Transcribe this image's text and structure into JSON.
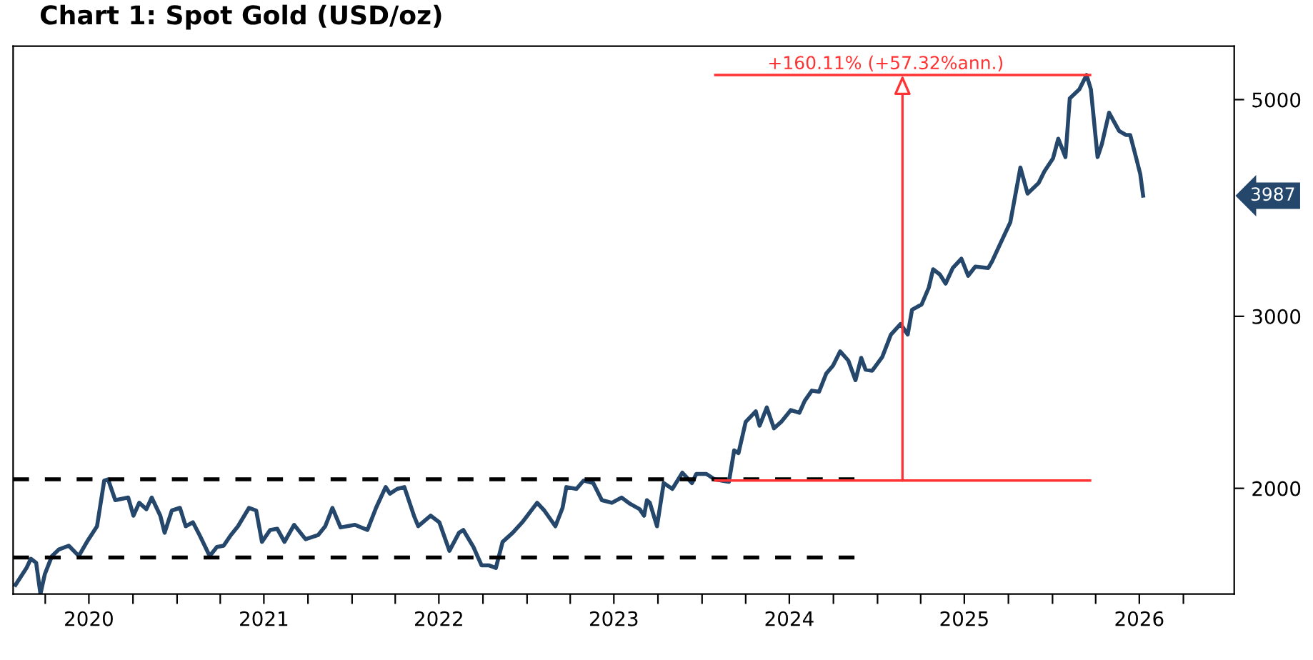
{
  "chart_data": {
    "type": "line",
    "title": "Chart 1: Spot Gold (USD/oz)",
    "log": "y",
    "ylim": [
      1559,
      5671
    ],
    "yticks": [
      2000,
      3000,
      5000
    ],
    "xlim": [
      "2020-01-25",
      "2027-01-15"
    ],
    "xticks": [
      {
        "value": "2020-04-01",
        "label": null
      },
      {
        "value": "2020-07-01",
        "label": "2020"
      },
      {
        "value": "2020-10-01",
        "label": null
      },
      {
        "value": "2021-01-01",
        "label": null
      },
      {
        "value": "2021-04-01",
        "label": null
      },
      {
        "value": "2021-07-01",
        "label": "2021"
      },
      {
        "value": "2021-10-01",
        "label": null
      },
      {
        "value": "2022-01-01",
        "label": null
      },
      {
        "value": "2022-04-01",
        "label": null
      },
      {
        "value": "2022-07-01",
        "label": "2022"
      },
      {
        "value": "2022-10-01",
        "label": null
      },
      {
        "value": "2023-01-01",
        "label": null
      },
      {
        "value": "2023-04-01",
        "label": null
      },
      {
        "value": "2023-07-01",
        "label": "2023"
      },
      {
        "value": "2023-10-01",
        "label": null
      },
      {
        "value": "2024-01-01",
        "label": null
      },
      {
        "value": "2024-04-01",
        "label": null
      },
      {
        "value": "2024-07-01",
        "label": "2024"
      },
      {
        "value": "2024-10-01",
        "label": null
      },
      {
        "value": "2025-01-01",
        "label": null
      },
      {
        "value": "2025-04-01",
        "label": null
      },
      {
        "value": "2025-07-01",
        "label": "2025"
      },
      {
        "value": "2025-10-01",
        "label": null
      },
      {
        "value": "2026-01-01",
        "label": null
      },
      {
        "value": "2026-04-01",
        "label": null
      },
      {
        "value": "2026-07-01",
        "label": "2026"
      },
      {
        "value": "2026-10-01",
        "label": null
      }
    ],
    "grid": false,
    "legend": false,
    "marker": "none",
    "line_style": "solid",
    "series": [
      {
        "color": "#24476b",
        "x": [
          "2020-01-30",
          "2020-02-22",
          "2020-03-02",
          "2020-03-13",
          "2020-03-22",
          "2020-03-31",
          "2020-04-15",
          "2020-04-29",
          "2020-05-20",
          "2020-06-10",
          "2020-06-27",
          "2020-07-18",
          "2020-08-02",
          "2020-08-10",
          "2020-08-25",
          "2020-09-21",
          "2020-10-02",
          "2020-10-14",
          "2020-10-29",
          "2020-11-09",
          "2020-11-27",
          "2020-12-06",
          "2020-12-21",
          "2021-01-07",
          "2021-01-19",
          "2021-02-03",
          "2021-02-17",
          "2021-03-10",
          "2021-03-25",
          "2021-04-08",
          "2021-04-23",
          "2021-05-08",
          "2021-05-31",
          "2021-06-15",
          "2021-06-27",
          "2021-07-14",
          "2021-07-29",
          "2021-08-13",
          "2021-09-02",
          "2021-09-26",
          "2021-10-22",
          "2021-11-06",
          "2021-11-21",
          "2021-12-08",
          "2022-01-07",
          "2022-02-02",
          "2022-02-20",
          "2022-03-12",
          "2022-03-21",
          "2022-04-05",
          "2022-04-20",
          "2022-05-10",
          "2022-05-19",
          "2022-06-14",
          "2022-07-02",
          "2022-07-23",
          "2022-08-12",
          "2022-08-21",
          "2022-09-11",
          "2022-09-28",
          "2022-10-13",
          "2022-10-28",
          "2022-11-11",
          "2022-12-02",
          "2022-12-22",
          "2023-01-22",
          "2023-02-06",
          "2023-03-01",
          "2023-03-16",
          "2023-03-24",
          "2023-04-14",
          "2023-04-29",
          "2023-05-19",
          "2023-06-06",
          "2023-06-27",
          "2023-07-17",
          "2023-08-04",
          "2023-08-24",
          "2023-09-02",
          "2023-09-08",
          "2023-09-14",
          "2023-09-29",
          "2023-10-13",
          "2023-10-31",
          "2023-11-21",
          "2023-12-11",
          "2023-12-20",
          "2024-01-10",
          "2024-01-27",
          "2024-02-26",
          "2024-03-08",
          "2024-03-17",
          "2024-04-01",
          "2024-04-22",
          "2024-04-30",
          "2024-05-15",
          "2024-05-30",
          "2024-06-14",
          "2024-07-04",
          "2024-07-22",
          "2024-08-02",
          "2024-08-17",
          "2024-09-01",
          "2024-09-16",
          "2024-09-30",
          "2024-10-15",
          "2024-11-01",
          "2024-11-16",
          "2024-11-28",
          "2024-12-07",
          "2024-12-21",
          "2025-01-11",
          "2025-01-29",
          "2025-02-18",
          "2025-03-05",
          "2025-03-14",
          "2025-04-03",
          "2025-04-18",
          "2025-04-27",
          "2025-05-11",
          "2025-05-23",
          "2025-06-07",
          "2025-06-25",
          "2025-07-09",
          "2025-07-24",
          "2025-08-20",
          "2025-08-28",
          "2025-09-12",
          "2025-10-05",
          "2025-10-26",
          "2025-11-10",
          "2025-12-03",
          "2025-12-15",
          "2026-01-02",
          "2026-01-13",
          "2026-01-28",
          "2026-02-06",
          "2026-02-26",
          "2026-03-13",
          "2026-03-22",
          "2026-04-05",
          "2026-04-14",
          "2026-04-29",
          "2026-05-14",
          "2026-05-20",
          "2026-06-03",
          "2026-06-12",
          "2026-06-24",
          "2026-07-03",
          "2026-07-09"
        ],
        "values": [
          1593,
          1658,
          1694,
          1678,
          1559,
          1633,
          1705,
          1731,
          1747,
          1705,
          1763,
          1829,
          2037,
          2043,
          1945,
          1957,
          1875,
          1933,
          1904,
          1957,
          1875,
          1801,
          1898,
          1910,
          1829,
          1846,
          1791,
          1705,
          1742,
          1747,
          1791,
          1829,
          1910,
          1898,
          1763,
          1813,
          1818,
          1763,
          1835,
          1774,
          1791,
          1829,
          1910,
          1824,
          1835,
          1813,
          1910,
          2006,
          1975,
          1997,
          2006,
          1875,
          1829,
          1875,
          1846,
          1726,
          1801,
          1813,
          1742,
          1668,
          1668,
          1658,
          1763,
          1801,
          1846,
          1933,
          1898,
          1829,
          1910,
          2006,
          1997,
          2037,
          2025,
          1945,
          1933,
          1957,
          1928,
          1904,
          1875,
          1945,
          1933,
          1829,
          2025,
          1997,
          2075,
          2025,
          2069,
          2069,
          2043,
          2031,
          2187,
          2173,
          2339,
          2398,
          2318,
          2420,
          2304,
          2339,
          2405,
          2390,
          2457,
          2518,
          2511,
          2621,
          2670,
          2762,
          2703,
          2581,
          2720,
          2646,
          2639,
          2727,
          2874,
          2946,
          2874,
          3047,
          3085,
          3211,
          3352,
          3311,
          3241,
          3362,
          3436,
          3301,
          3373,
          3362,
          3415,
          3543,
          3745,
          4260,
          4007,
          4107,
          4221,
          4353,
          4559,
          4367,
          5014,
          5123,
          5299,
          5123,
          4367,
          4503,
          4848,
          4701,
          4644,
          4600,
          4600,
          4367,
          4196,
          3987
        ]
      }
    ],
    "ref_lines": [
      {
        "axis": "y",
        "value": 2043,
        "color": "#000000",
        "line_style": "dashed"
      },
      {
        "axis": "y",
        "value": 1699,
        "color": "#000000",
        "line_style": "dashed"
      },
      {
        "axis": "y",
        "value": 2037,
        "color": "#ff3333",
        "line_style": "solid"
      },
      {
        "axis": "y",
        "value": 5299,
        "color": "#ff3333",
        "line_style": "solid"
      }
    ],
    "annotations": [
      {
        "text": "+160.11% (+57.32%ann.)",
        "x": "2025-02-22",
        "y": 5299
      },
      "3987"
    ]
  }
}
